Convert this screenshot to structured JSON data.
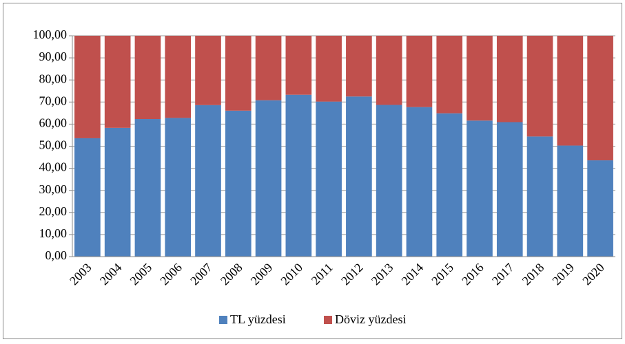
{
  "chart_data": {
    "type": "stacked_bar",
    "categories": [
      "2003",
      "2004",
      "2005",
      "2006",
      "2007",
      "2008",
      "2009",
      "2010",
      "2011",
      "2012",
      "2013",
      "2014",
      "2015",
      "2016",
      "2017",
      "2018",
      "2019",
      "2020"
    ],
    "series": [
      {
        "name": "TL yüzdesi",
        "color": "#4f81bd",
        "values": [
          53.6,
          58.3,
          62.3,
          62.8,
          68.6,
          66.1,
          70.8,
          73.3,
          70.2,
          72.5,
          68.7,
          67.7,
          64.9,
          61.6,
          60.9,
          54.4,
          50.3,
          43.6
        ]
      },
      {
        "name": "Döviz yüzdesi",
        "color": "#c0504d",
        "values": [
          46.4,
          41.7,
          37.7,
          37.2,
          31.4,
          33.9,
          29.2,
          26.7,
          29.8,
          27.5,
          31.3,
          32.3,
          35.1,
          38.4,
          39.1,
          45.6,
          49.7,
          56.4
        ]
      }
    ],
    "ylim": [
      0,
      100
    ],
    "yticks": [
      {
        "value": 0,
        "label": "0,00"
      },
      {
        "value": 10,
        "label": "10,00"
      },
      {
        "value": 20,
        "label": "20,00"
      },
      {
        "value": 30,
        "label": "30,00"
      },
      {
        "value": 40,
        "label": "40,00"
      },
      {
        "value": 50,
        "label": "50,00"
      },
      {
        "value": 60,
        "label": "60,00"
      },
      {
        "value": 70,
        "label": "70,00"
      },
      {
        "value": 80,
        "label": "80,00"
      },
      {
        "value": 90,
        "label": "90,00"
      },
      {
        "value": 100,
        "label": "100,00"
      }
    ],
    "grid": true,
    "legend": "bottom"
  }
}
